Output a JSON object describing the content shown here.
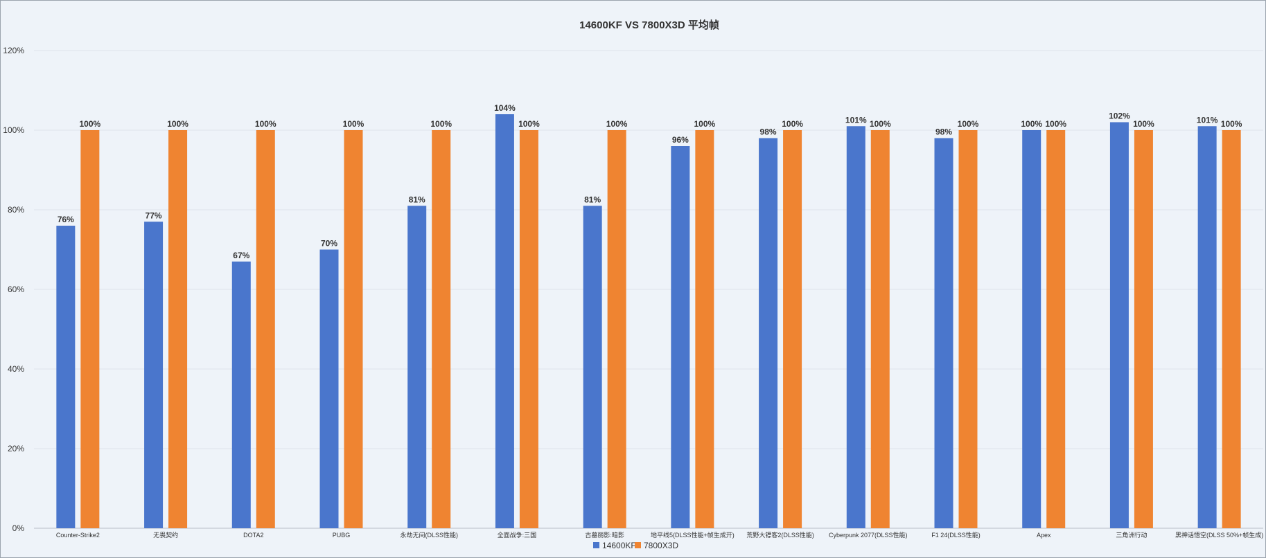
{
  "chart_data": {
    "type": "bar",
    "title": "14600KF  VS  7800X3D   平均帧",
    "categories": [
      "Counter-Strike2",
      "无畏契约",
      "DOTA2",
      "PUBG",
      "永劫无间(DLSS性能)",
      "全面战争:三国",
      "古墓丽影:暗影",
      "地平线5(DLSS性能+帧生成开)",
      "荒野大镖客2(DLSS性能)",
      "Cyberpunk 2077(DLSS性能)",
      "F1 24(DLSS性能)",
      "Apex",
      "三角洲行动",
      "黑神话悟空(DLSS 50%+帧生成)"
    ],
    "series": [
      {
        "name": "14600KF",
        "color": "#4a76cc",
        "values": [
          76,
          77,
          67,
          70,
          81,
          104,
          81,
          96,
          98,
          101,
          98,
          100,
          102,
          101
        ],
        "labels": [
          "76%",
          "77%",
          "67%",
          "70%",
          "81%",
          "104%",
          "81%",
          "96%",
          "98%",
          "101%",
          "98%",
          "100%",
          "102%",
          "101%"
        ]
      },
      {
        "name": "7800X3D",
        "color": "#ef8431",
        "values": [
          100,
          100,
          100,
          100,
          100,
          100,
          100,
          100,
          100,
          100,
          100,
          100,
          100,
          100
        ],
        "labels": [
          "100%",
          "100%",
          "100%",
          "100%",
          "100%",
          "100%",
          "100%",
          "100%",
          "100%",
          "100%",
          "100%",
          "100%",
          "100%",
          "100%"
        ]
      }
    ],
    "ylim": [
      0,
      120
    ],
    "yticks": [
      "0%",
      "20%",
      "40%",
      "60%",
      "80%",
      "100%",
      "120%"
    ],
    "xlabel": "",
    "ylabel": "",
    "grid": true,
    "legend_position": "bottom-center"
  }
}
